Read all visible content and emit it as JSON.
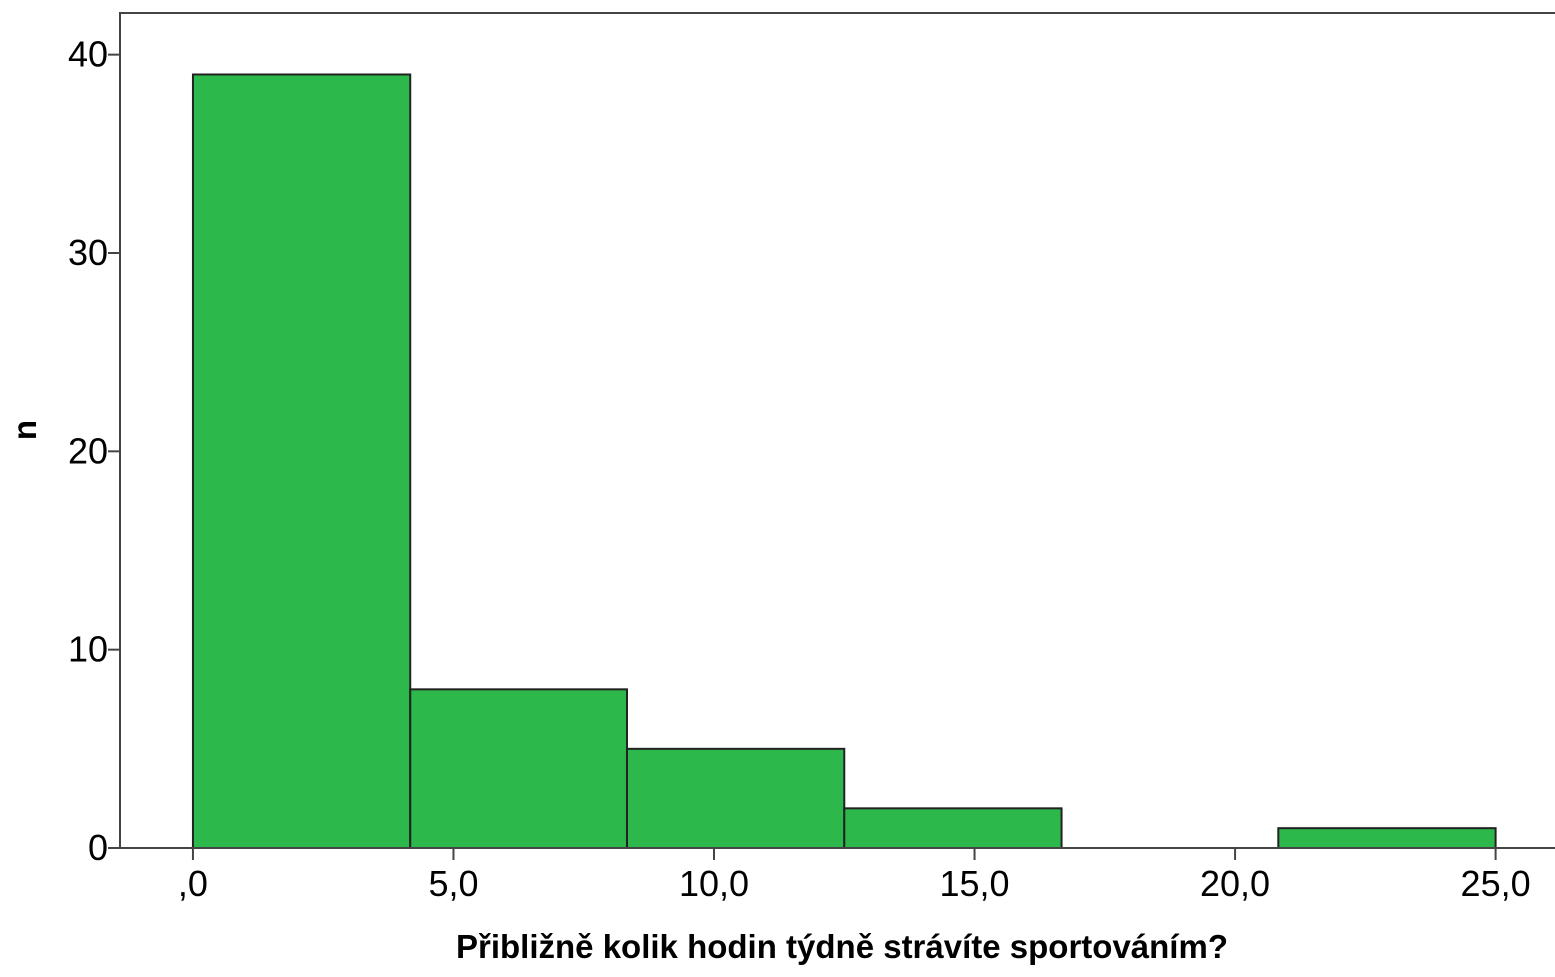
{
  "chart_data": {
    "type": "histogram",
    "x_label": "Přibližně kolik hodin týdně strávíte sportováním?",
    "y_label": "n",
    "bins": [
      0,
      4.17,
      8.33,
      12.5,
      16.67,
      20.83,
      25
    ],
    "values": [
      39,
      8,
      5,
      2,
      0,
      1
    ],
    "color": "#2db84b",
    "xlim": [
      -1.4,
      26.14
    ],
    "ylim": [
      0,
      42.1
    ],
    "xticks": [
      {
        "value": 0,
        "label": ",0"
      },
      {
        "value": 5,
        "label": "5,0"
      },
      {
        "value": 10,
        "label": "10,0"
      },
      {
        "value": 15,
        "label": "15,0"
      },
      {
        "value": 20,
        "label": "20,0"
      },
      {
        "value": 25,
        "label": "25,0"
      }
    ],
    "yticks": [
      0,
      10,
      20,
      30,
      40
    ]
  }
}
